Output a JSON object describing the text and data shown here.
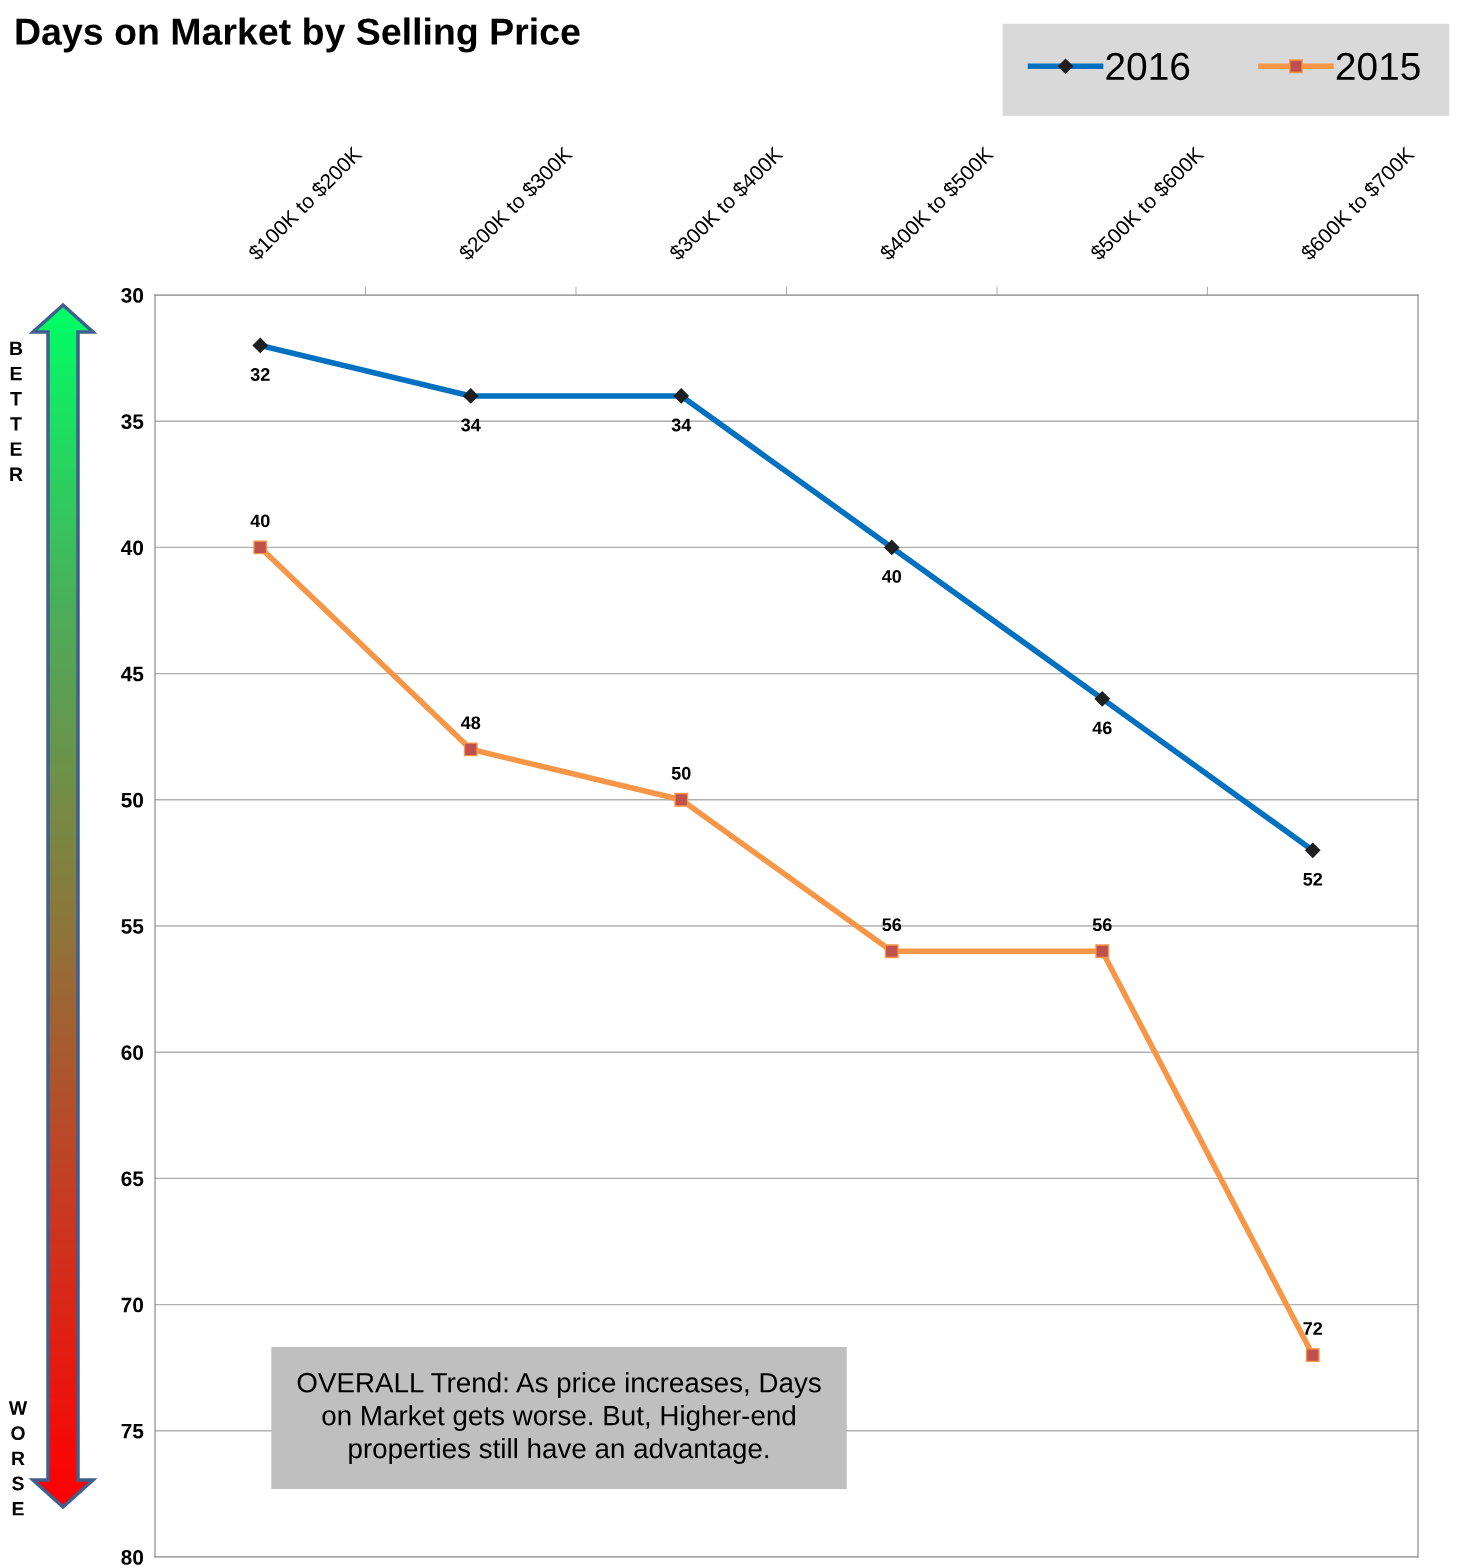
{
  "chart_data": {
    "type": "line",
    "title": "Days on Market by Selling Price",
    "categories": [
      "$100K to $200K",
      "$200K to $300K",
      "$300K to $400K",
      "$400K to $500K",
      "$500K to $600K",
      "$600K to $700K"
    ],
    "series": [
      {
        "name": "2016",
        "color": "#0070c0",
        "marker": "diamond",
        "values": [
          32,
          34,
          34,
          40,
          46,
          52
        ]
      },
      {
        "name": "2015",
        "color": "#f79646",
        "marker": "square",
        "values": [
          40,
          48,
          50,
          56,
          56,
          72
        ]
      }
    ],
    "ylim": [
      80,
      30
    ],
    "yticks": [
      30,
      35,
      40,
      45,
      50,
      55,
      60,
      65,
      70,
      75,
      80
    ],
    "grid": "y",
    "legend": "top right",
    "data_labels": true,
    "line_style": "solid",
    "annotations": [
      "OVERALL Trend: As price increases, Days\non Market gets worse. But, Higher-end\nproperties still have an advantage.",
      "BETTER",
      "WORSE"
    ]
  }
}
